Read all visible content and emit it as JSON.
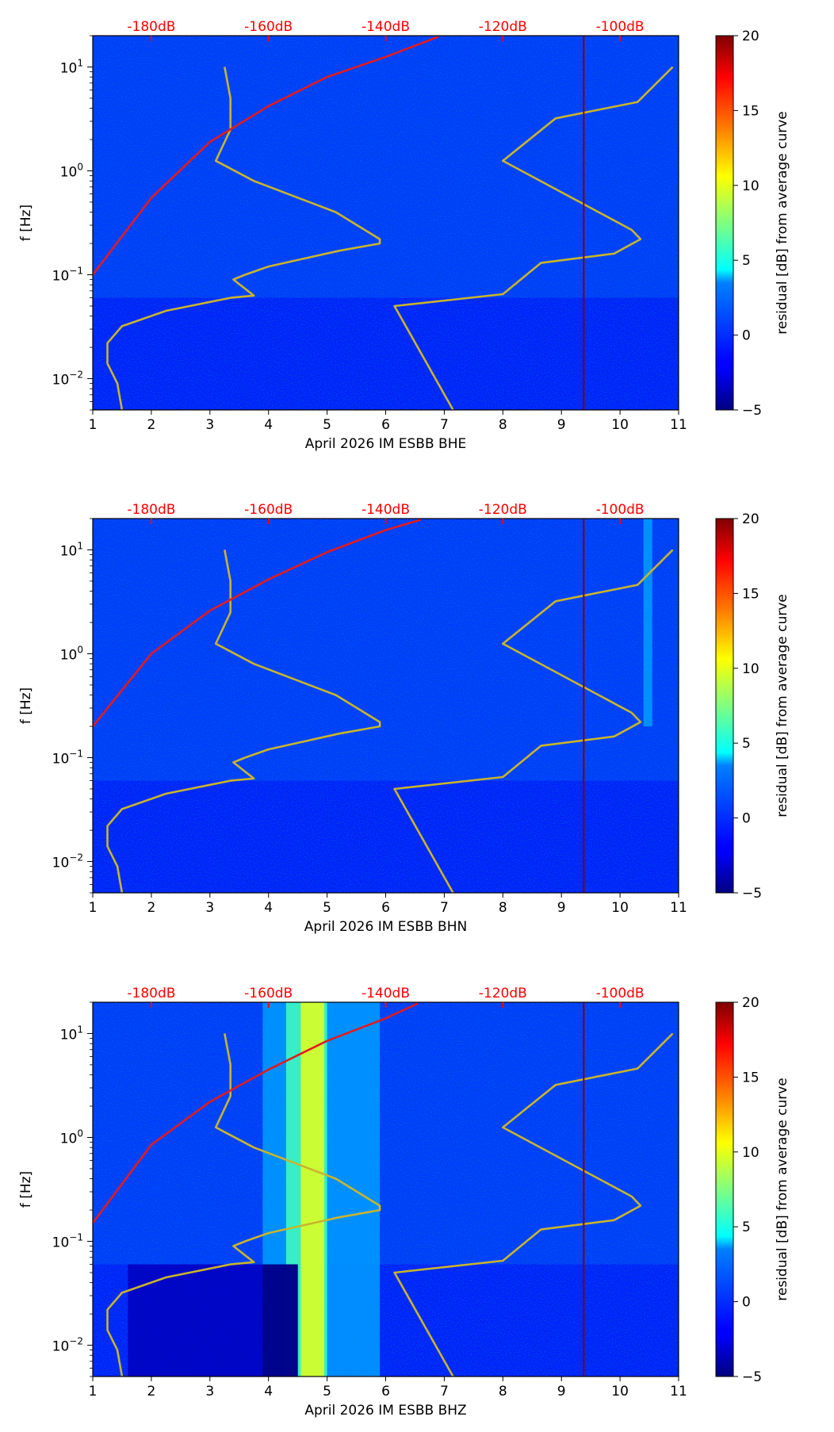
{
  "figure": {
    "colormap": "jet",
    "colorbar": {
      "label": "residual [dB] from average curve",
      "ticks": [
        -5,
        0,
        5,
        10,
        15,
        20
      ],
      "range": [
        -5,
        20
      ]
    },
    "top_axis_color": "#ff0000",
    "noise_model_color": "#c8b42c",
    "red_curve_color": "#e41a1c",
    "vline_color": "#8b0000"
  },
  "chart_data": [
    {
      "type": "heatmap",
      "panel": "BHE",
      "xlabel": "April 2026 IM ESBB  BHE",
      "ylabel": "f [Hz]",
      "xlim": [
        1,
        11
      ],
      "xticks": [
        "1",
        "2",
        "3",
        "4",
        "5",
        "6",
        "7",
        "8",
        "9",
        "10",
        "11"
      ],
      "yscale": "log",
      "ylim": [
        0.005,
        20
      ],
      "yticks": [
        {
          "base": "10",
          "exp": "−2",
          "value": 0.01
        },
        {
          "base": "10",
          "exp": "−1",
          "value": 0.1
        },
        {
          "base": "10",
          "exp": "0",
          "value": 1
        },
        {
          "base": "10",
          "exp": "1",
          "value": 10
        }
      ],
      "top_axis": {
        "labels": [
          "-180dB",
          "-160dB",
          "-140dB",
          "-120dB",
          "-100dB"
        ],
        "positions": [
          2,
          4,
          6,
          8,
          10
        ]
      },
      "vline_x": 9.38,
      "noise_low_model": {
        "x": [
          1.5,
          1.42,
          1.25,
          1.25,
          1.5,
          2.25,
          3.35,
          3.75,
          3.4,
          3.6,
          4.0,
          5.2,
          5.9,
          5.9,
          5.15,
          3.75,
          3.1,
          3.35,
          3.35,
          3.25
        ],
        "f": [
          0.005,
          0.009,
          0.014,
          0.022,
          0.032,
          0.045,
          0.06,
          0.063,
          0.09,
          0.1,
          0.12,
          0.17,
          0.2,
          0.22,
          0.4,
          0.8,
          1.25,
          2.5,
          5.0,
          10.0
        ]
      },
      "noise_high_model": {
        "x": [
          7.15,
          6.15,
          8.0,
          8.65,
          9.9,
          10.35,
          10.2,
          8.0,
          8.9,
          10.3,
          10.9
        ],
        "f": [
          0.005,
          0.05,
          0.065,
          0.13,
          0.16,
          0.22,
          0.27,
          1.25,
          3.2,
          4.6,
          10.0
        ]
      },
      "red_curve": {
        "x": [
          1.0,
          2.0,
          3.0,
          4.0,
          5.0,
          6.0,
          6.9
        ],
        "f": [
          0.1,
          0.55,
          1.9,
          4.2,
          8.0,
          12.5,
          19.5
        ]
      },
      "bands": []
    },
    {
      "type": "heatmap",
      "panel": "BHN",
      "xlabel": "April 2026 IM ESBB  BHN",
      "ylabel": "f [Hz]",
      "xlim": [
        1,
        11
      ],
      "xticks": [
        "1",
        "2",
        "3",
        "4",
        "5",
        "6",
        "7",
        "8",
        "9",
        "10",
        "11"
      ],
      "yscale": "log",
      "ylim": [
        0.005,
        20
      ],
      "yticks": [
        {
          "base": "10",
          "exp": "−2",
          "value": 0.01
        },
        {
          "base": "10",
          "exp": "−1",
          "value": 0.1
        },
        {
          "base": "10",
          "exp": "0",
          "value": 1
        },
        {
          "base": "10",
          "exp": "1",
          "value": 10
        }
      ],
      "top_axis": {
        "labels": [
          "-180dB",
          "-160dB",
          "-140dB",
          "-120dB",
          "-100dB"
        ],
        "positions": [
          2,
          4,
          6,
          8,
          10
        ]
      },
      "vline_x": 9.38,
      "noise_low_model": {
        "x": [
          1.5,
          1.42,
          1.25,
          1.25,
          1.5,
          2.25,
          3.35,
          3.75,
          3.4,
          3.6,
          4.0,
          5.2,
          5.9,
          5.9,
          5.15,
          3.75,
          3.1,
          3.35,
          3.35,
          3.25
        ],
        "f": [
          0.005,
          0.009,
          0.014,
          0.022,
          0.032,
          0.045,
          0.06,
          0.063,
          0.09,
          0.1,
          0.12,
          0.17,
          0.2,
          0.22,
          0.4,
          0.8,
          1.25,
          2.5,
          5.0,
          10.0
        ]
      },
      "noise_high_model": {
        "x": [
          7.15,
          6.15,
          8.0,
          8.65,
          9.9,
          10.35,
          10.2,
          8.0,
          8.9,
          10.3,
          10.9
        ],
        "f": [
          0.005,
          0.05,
          0.065,
          0.13,
          0.16,
          0.22,
          0.27,
          1.25,
          3.2,
          4.6,
          10.0
        ]
      },
      "red_curve": {
        "x": [
          1.0,
          2.0,
          3.0,
          4.0,
          5.0,
          6.0,
          6.6
        ],
        "f": [
          0.2,
          1.0,
          2.6,
          5.2,
          9.5,
          15.5,
          19.5
        ]
      },
      "bands": [
        {
          "x_start": 10.4,
          "x_end": 10.55,
          "f_low": 0.2,
          "f_high": 20,
          "value": 2
        }
      ]
    },
    {
      "type": "heatmap",
      "panel": "BHZ",
      "xlabel": "April 2026 IM ESBB  BHZ",
      "ylabel": "f [Hz]",
      "xlim": [
        1,
        11
      ],
      "xticks": [
        "1",
        "2",
        "3",
        "4",
        "5",
        "6",
        "7",
        "8",
        "9",
        "10",
        "11"
      ],
      "yscale": "log",
      "ylim": [
        0.005,
        20
      ],
      "yticks": [
        {
          "base": "10",
          "exp": "−2",
          "value": 0.01
        },
        {
          "base": "10",
          "exp": "−1",
          "value": 0.1
        },
        {
          "base": "10",
          "exp": "0",
          "value": 1
        },
        {
          "base": "10",
          "exp": "1",
          "value": 10
        }
      ],
      "top_axis": {
        "labels": [
          "-180dB",
          "-160dB",
          "-140dB",
          "-120dB",
          "-100dB"
        ],
        "positions": [
          2,
          4,
          6,
          8,
          10
        ]
      },
      "vline_x": 9.38,
      "noise_low_model": {
        "x": [
          1.5,
          1.42,
          1.25,
          1.25,
          1.5,
          2.25,
          3.35,
          3.75,
          3.4,
          3.6,
          4.0,
          5.2,
          5.9,
          5.9,
          5.15,
          3.75,
          3.1,
          3.35,
          3.35,
          3.25
        ],
        "f": [
          0.005,
          0.009,
          0.014,
          0.022,
          0.032,
          0.045,
          0.06,
          0.063,
          0.09,
          0.1,
          0.12,
          0.17,
          0.2,
          0.22,
          0.4,
          0.8,
          1.25,
          2.5,
          5.0,
          10.0
        ]
      },
      "noise_high_model": {
        "x": [
          7.15,
          6.15,
          8.0,
          8.65,
          9.9,
          10.35,
          10.2,
          8.0,
          8.9,
          10.3,
          10.9
        ],
        "f": [
          0.005,
          0.05,
          0.065,
          0.13,
          0.16,
          0.22,
          0.27,
          1.25,
          3.2,
          4.6,
          10.0
        ]
      },
      "red_curve": {
        "x": [
          1.0,
          2.0,
          3.0,
          4.0,
          5.0,
          6.0,
          6.55
        ],
        "f": [
          0.15,
          0.85,
          2.2,
          4.5,
          8.5,
          14.0,
          19.5
        ]
      },
      "bands": [
        {
          "x_start": 3.9,
          "x_end": 5.9,
          "f_low": 0.005,
          "f_high": 20,
          "value": 2
        },
        {
          "x_start": 4.3,
          "x_end": 5.0,
          "f_low": 0.005,
          "f_high": 20,
          "value": 6
        },
        {
          "x_start": 4.55,
          "x_end": 4.95,
          "f_low": 0.005,
          "f_high": 20,
          "value": 10
        },
        {
          "x_start": 1.6,
          "x_end": 4.5,
          "f_low": 0.005,
          "f_high": 0.06,
          "value": -3.5
        },
        {
          "x_start": 3.9,
          "x_end": 4.5,
          "f_low": 0.005,
          "f_high": 0.06,
          "value": -5
        }
      ]
    }
  ]
}
